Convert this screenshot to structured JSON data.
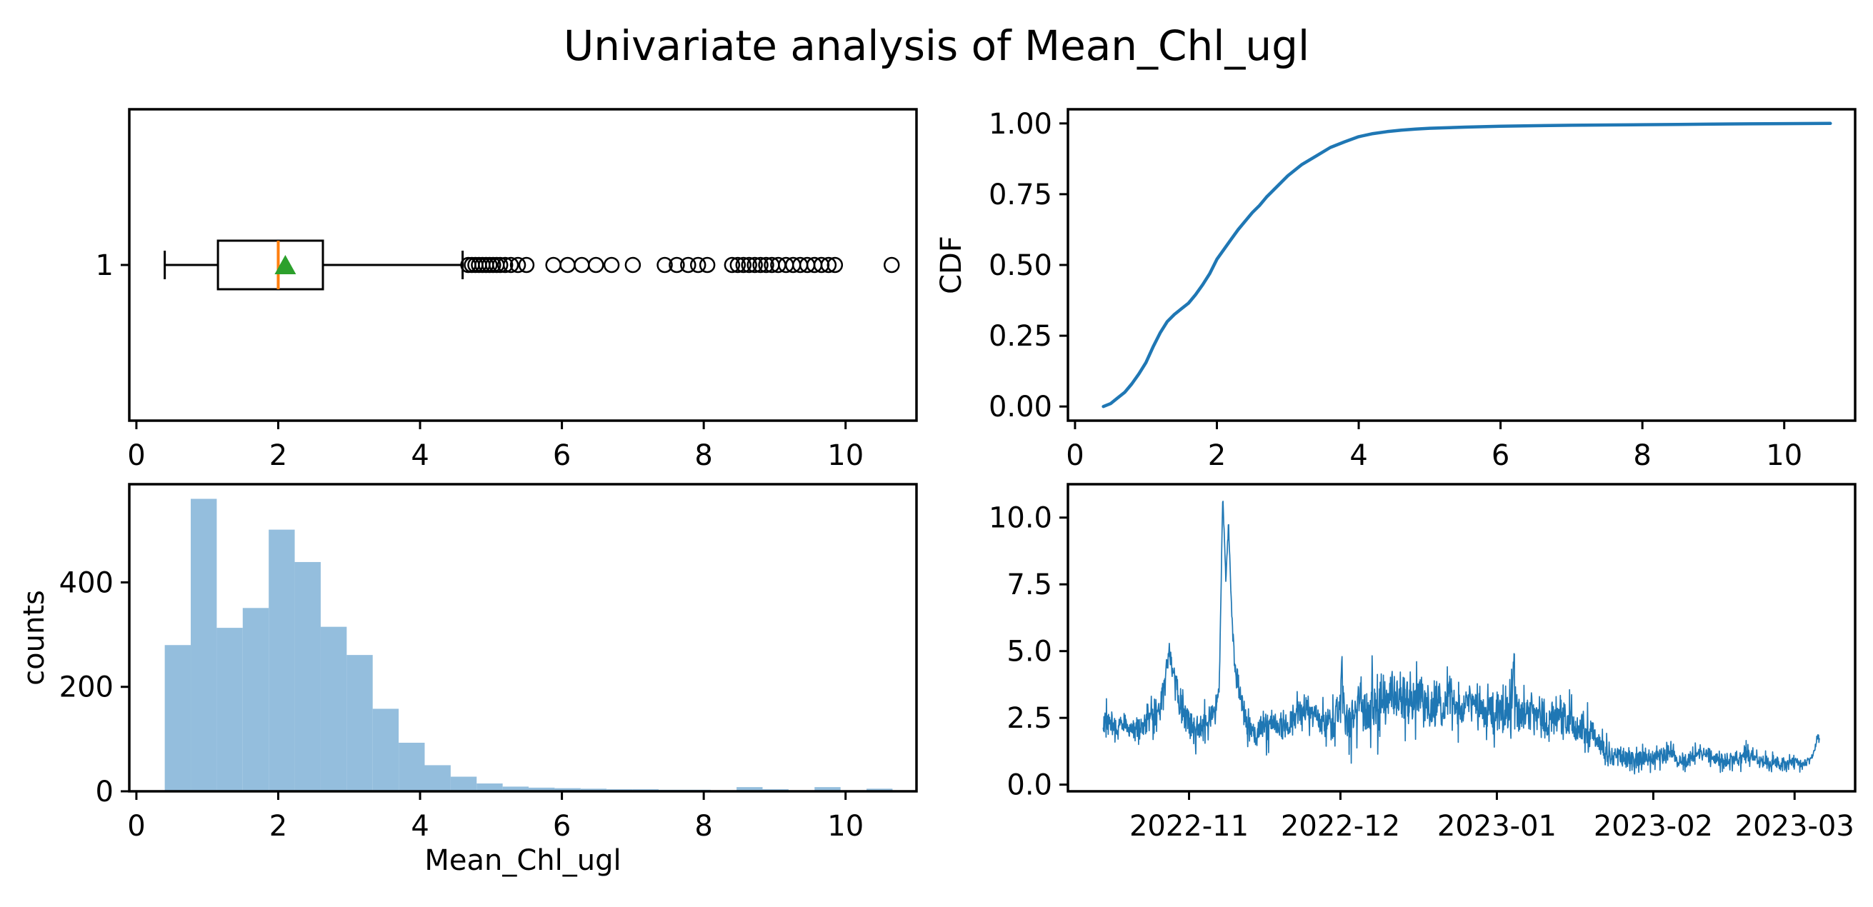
{
  "title": "Univariate analysis of Mean_Chl_ugl",
  "colors": {
    "series_blue": "#1f77b4",
    "hist_fill": "#94bedd",
    "median_orange": "#ff7f0e",
    "mean_green": "#2ca02c",
    "axis_black": "#000000"
  },
  "chart_data": [
    {
      "id": "boxplot",
      "type": "boxplot",
      "orientation": "horizontal",
      "x_ticks": [
        0,
        2,
        4,
        6,
        8,
        10
      ],
      "x_tick_labels": [
        "0",
        "2",
        "4",
        "6",
        "8",
        "10"
      ],
      "xlim": [
        -0.1,
        11.0
      ],
      "y_tick_label": "1",
      "stats": {
        "whisker_low": 0.4,
        "q1": 1.15,
        "median": 2.0,
        "mean": 2.1,
        "q3": 2.63,
        "whisker_high": 4.6
      },
      "outliers": [
        4.68,
        4.73,
        4.78,
        4.83,
        4.88,
        4.93,
        4.98,
        5.03,
        5.08,
        5.13,
        5.2,
        5.28,
        5.38,
        5.5,
        5.88,
        6.08,
        6.28,
        6.48,
        6.7,
        7.0,
        7.45,
        7.62,
        7.78,
        7.92,
        8.05,
        8.4,
        8.48,
        8.56,
        8.64,
        8.72,
        8.8,
        8.88,
        8.96,
        9.05,
        9.16,
        9.26,
        9.36,
        9.46,
        9.56,
        9.66,
        9.76,
        9.85,
        10.65
      ]
    },
    {
      "id": "cdf",
      "type": "line",
      "ylabel": "CDF",
      "x_ticks": [
        0,
        2,
        4,
        6,
        8,
        10
      ],
      "x_tick_labels": [
        "0",
        "2",
        "4",
        "6",
        "8",
        "10"
      ],
      "y_ticks": [
        0.0,
        0.25,
        0.5,
        0.75,
        1.0
      ],
      "y_tick_labels": [
        "0.00",
        "0.25",
        "0.50",
        "0.75",
        "1.00"
      ],
      "xlim": [
        -0.1,
        11.0
      ],
      "ylim": [
        -0.05,
        1.05
      ],
      "points": [
        [
          0.4,
          0.0
        ],
        [
          0.5,
          0.01
        ],
        [
          0.6,
          0.03
        ],
        [
          0.7,
          0.05
        ],
        [
          0.8,
          0.08
        ],
        [
          0.9,
          0.115
        ],
        [
          1.0,
          0.155
        ],
        [
          1.1,
          0.21
        ],
        [
          1.2,
          0.26
        ],
        [
          1.3,
          0.3
        ],
        [
          1.4,
          0.325
        ],
        [
          1.5,
          0.345
        ],
        [
          1.6,
          0.365
        ],
        [
          1.7,
          0.395
        ],
        [
          1.8,
          0.43
        ],
        [
          1.9,
          0.47
        ],
        [
          2.0,
          0.52
        ],
        [
          2.1,
          0.555
        ],
        [
          2.2,
          0.59
        ],
        [
          2.3,
          0.625
        ],
        [
          2.4,
          0.655
        ],
        [
          2.5,
          0.685
        ],
        [
          2.6,
          0.71
        ],
        [
          2.7,
          0.74
        ],
        [
          2.8,
          0.765
        ],
        [
          2.9,
          0.79
        ],
        [
          3.0,
          0.815
        ],
        [
          3.2,
          0.855
        ],
        [
          3.4,
          0.885
        ],
        [
          3.6,
          0.915
        ],
        [
          3.8,
          0.935
        ],
        [
          4.0,
          0.953
        ],
        [
          4.2,
          0.964
        ],
        [
          4.4,
          0.971
        ],
        [
          4.6,
          0.976
        ],
        [
          4.8,
          0.98
        ],
        [
          5.0,
          0.983
        ],
        [
          5.5,
          0.987
        ],
        [
          6.0,
          0.99
        ],
        [
          6.5,
          0.992
        ],
        [
          7.0,
          0.9935
        ],
        [
          7.5,
          0.9945
        ],
        [
          8.0,
          0.9955
        ],
        [
          8.5,
          0.9965
        ],
        [
          9.0,
          0.9975
        ],
        [
          9.5,
          0.9985
        ],
        [
          10.0,
          0.9992
        ],
        [
          10.65,
          1.0
        ]
      ]
    },
    {
      "id": "histogram",
      "type": "bar",
      "xlabel": "Mean_Chl_ugl",
      "ylabel": "counts",
      "x_ticks": [
        0,
        2,
        4,
        6,
        8,
        10
      ],
      "x_tick_labels": [
        "0",
        "2",
        "4",
        "6",
        "8",
        "10"
      ],
      "y_ticks": [
        0,
        200,
        400
      ],
      "y_tick_labels": [
        "0",
        "200",
        "400"
      ],
      "xlim": [
        -0.1,
        11.0
      ],
      "ylim": [
        0,
        588
      ],
      "bin_start": 0.4,
      "bin_width": 0.3665,
      "counts": [
        280,
        560,
        313,
        351,
        501,
        439,
        315,
        261,
        158,
        93,
        50,
        28,
        15,
        9,
        7,
        6,
        5,
        4,
        4,
        3,
        3,
        2,
        8,
        4,
        2,
        8,
        2,
        5
      ]
    },
    {
      "id": "timeseries",
      "type": "line",
      "start_date": "2022-10-15",
      "x_ticks_days": [
        17,
        47,
        78,
        109,
        137
      ],
      "x_tick_labels": [
        "2022-11",
        "2022-12",
        "2023-01",
        "2023-02",
        "2023-03"
      ],
      "y_ticks": [
        0.0,
        2.5,
        5.0,
        7.5,
        10.0
      ],
      "y_tick_labels": [
        "0.0",
        "2.5",
        "5.0",
        "7.5",
        "10.0"
      ],
      "xlim_days": [
        -7,
        149
      ],
      "ylim": [
        -0.25,
        11.25
      ],
      "anchors": [
        [
          0,
          2.4
        ],
        [
          2,
          2.1
        ],
        [
          4,
          2.2
        ],
        [
          6,
          2.0
        ],
        [
          8,
          2.25
        ],
        [
          10,
          2.5
        ],
        [
          11,
          2.8
        ],
        [
          12,
          3.5
        ],
        [
          13,
          5.05
        ],
        [
          13.6,
          4.6
        ],
        [
          14,
          4.1
        ],
        [
          15,
          3.2
        ],
        [
          16,
          2.7
        ],
        [
          17,
          2.35
        ],
        [
          18,
          2.0
        ],
        [
          19,
          2.1
        ],
        [
          20,
          2.25
        ],
        [
          21,
          2.4
        ],
        [
          22,
          2.6
        ],
        [
          23,
          3.6
        ],
        [
          23.6,
          10.2
        ],
        [
          23.7,
          10.85
        ],
        [
          23.8,
          10.3
        ],
        [
          24.3,
          7.6
        ],
        [
          24.8,
          9.8
        ],
        [
          25.5,
          6.2
        ],
        [
          26,
          4.6
        ],
        [
          27,
          3.3
        ],
        [
          28,
          2.6
        ],
        [
          29,
          2.1
        ],
        [
          30,
          1.8
        ],
        [
          31,
          1.9
        ],
        [
          32,
          2.05
        ],
        [
          34,
          2.3
        ],
        [
          36,
          2.2
        ],
        [
          38,
          2.5
        ],
        [
          40,
          2.9
        ],
        [
          41,
          2.8
        ],
        [
          42,
          2.6
        ],
        [
          43,
          2.4
        ],
        [
          44,
          2.25
        ],
        [
          45,
          2.2
        ],
        [
          46,
          2.45
        ],
        [
          47,
          2.8
        ],
        [
          47.1,
          3.4
        ],
        [
          47.3,
          4.85
        ],
        [
          47.5,
          3.2
        ],
        [
          48,
          2.6
        ],
        [
          49,
          2.45
        ],
        [
          50,
          2.85
        ],
        [
          51,
          3.05
        ],
        [
          52,
          2.8
        ],
        [
          53,
          2.65
        ],
        [
          53.1,
          3.2
        ],
        [
          53.3,
          4.6
        ],
        [
          53.5,
          3.1
        ],
        [
          54,
          2.9
        ],
        [
          55,
          3.0
        ],
        [
          56,
          3.25
        ],
        [
          57,
          3.45
        ],
        [
          58,
          3.2
        ],
        [
          59,
          3.0
        ],
        [
          60,
          3.35
        ],
        [
          61,
          3.3
        ],
        [
          62,
          3.1
        ],
        [
          63,
          3.3
        ],
        [
          64,
          3.05
        ],
        [
          65,
          2.9
        ],
        [
          66,
          3.1
        ],
        [
          67,
          3.0
        ],
        [
          68,
          3.2
        ],
        [
          69,
          3.4
        ],
        [
          70,
          3.1
        ],
        [
          71,
          2.9
        ],
        [
          72,
          3.0
        ],
        [
          73,
          2.85
        ],
        [
          74,
          3.0
        ],
        [
          75,
          2.85
        ],
        [
          76,
          2.7
        ],
        [
          77,
          2.6
        ],
        [
          78,
          2.7
        ],
        [
          79,
          2.5
        ],
        [
          80,
          2.6
        ],
        [
          81,
          2.9
        ],
        [
          81.2,
          3.8
        ],
        [
          81.4,
          4.65
        ],
        [
          81.6,
          3.4
        ],
        [
          82,
          2.8
        ],
        [
          83,
          2.6
        ],
        [
          84,
          2.75
        ],
        [
          85,
          2.8
        ],
        [
          86,
          2.6
        ],
        [
          87,
          2.45
        ],
        [
          88,
          2.3
        ],
        [
          89,
          2.45
        ],
        [
          90,
          2.7
        ],
        [
          91,
          2.5
        ],
        [
          92,
          2.4
        ],
        [
          93,
          2.25
        ],
        [
          94,
          2.1
        ],
        [
          95,
          2.0
        ],
        [
          96,
          1.9
        ],
        [
          97,
          1.7
        ],
        [
          98,
          1.5
        ],
        [
          99,
          1.35
        ],
        [
          100,
          1.2
        ],
        [
          101,
          1.1
        ],
        [
          102,
          1.05
        ],
        [
          103,
          1.0
        ],
        [
          104,
          0.95
        ],
        [
          106,
          0.9
        ],
        [
          107,
          0.95
        ],
        [
          108,
          1.0
        ],
        [
          109,
          0.95
        ],
        [
          110,
          1.0
        ],
        [
          111,
          1.15
        ],
        [
          112,
          1.15
        ],
        [
          113,
          1.05
        ],
        [
          114,
          0.95
        ],
        [
          115,
          0.9
        ],
        [
          116,
          0.95
        ],
        [
          117,
          1.0
        ],
        [
          118,
          1.1
        ],
        [
          119,
          1.15
        ],
        [
          120,
          1.1
        ],
        [
          121,
          1.0
        ],
        [
          122,
          0.95
        ],
        [
          123,
          0.9
        ],
        [
          124,
          0.9
        ],
        [
          125,
          0.95
        ],
        [
          126,
          1.0
        ],
        [
          127,
          1.1
        ],
        [
          128,
          1.05
        ],
        [
          129,
          1.0
        ],
        [
          130,
          0.9
        ],
        [
          131,
          0.85
        ],
        [
          132,
          0.8
        ],
        [
          133,
          0.8
        ],
        [
          134,
          0.75
        ],
        [
          135,
          0.75
        ],
        [
          136,
          0.8
        ],
        [
          137,
          0.8
        ],
        [
          138,
          0.75
        ],
        [
          139,
          0.8
        ],
        [
          140,
          0.9
        ],
        [
          141,
          1.3
        ],
        [
          141.6,
          1.85
        ],
        [
          142,
          1.65
        ]
      ],
      "noise_amplitude": [
        [
          0,
          0.45
        ],
        [
          22,
          0.5
        ],
        [
          23,
          0.18
        ],
        [
          25.5,
          0.18
        ],
        [
          26.5,
          0.5
        ],
        [
          45,
          0.5
        ],
        [
          47,
          0.8
        ],
        [
          60,
          0.8
        ],
        [
          75,
          0.75
        ],
        [
          90,
          0.7
        ],
        [
          97,
          0.6
        ],
        [
          103,
          0.4
        ],
        [
          108,
          0.32
        ],
        [
          125,
          0.28
        ],
        [
          138,
          0.22
        ],
        [
          140,
          0.15
        ],
        [
          142,
          0.12
        ]
      ]
    }
  ]
}
